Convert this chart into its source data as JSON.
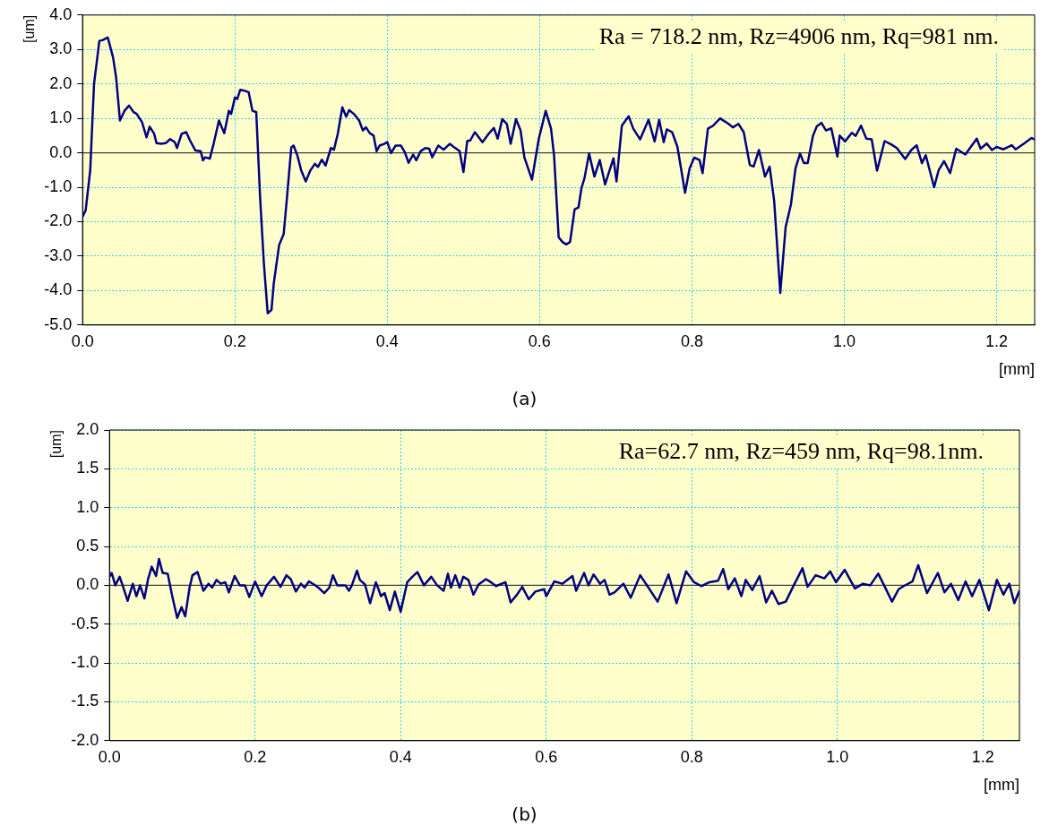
{
  "chart_data": [
    {
      "type": "line",
      "xlabel": "[mm]",
      "ylabel": "[um]",
      "color": "#000080",
      "marker": "none",
      "line_style": "solid",
      "grid": true,
      "legend": false,
      "annotations": [
        "Ra = 718.2 nm, Rz=4906 nm, Rq=981 nm.",
        "(a)"
      ],
      "ref_lines": [
        {
          "axis": "y",
          "value": 0,
          "color": "#404040"
        }
      ],
      "xlim": [
        0,
        1.25
      ],
      "xticks": [
        {
          "value": 0,
          "label": "0.0"
        },
        {
          "value": 0.2,
          "label": "0.2"
        },
        {
          "value": 0.4,
          "label": "0.4"
        },
        {
          "value": 0.6,
          "label": "0.6"
        },
        {
          "value": 0.8,
          "label": "0.8"
        },
        {
          "value": 1,
          "label": "1.0"
        },
        {
          "value": 1.2,
          "label": "1.2"
        }
      ],
      "ylim": [
        -5,
        4
      ],
      "yticks": [
        {
          "value": -5,
          "label": "-5.0"
        },
        {
          "value": -4,
          "label": "-4.0"
        },
        {
          "value": -3,
          "label": "-3.0"
        },
        {
          "value": -2,
          "label": "-2.0"
        },
        {
          "value": -1,
          "label": "-1.0"
        },
        {
          "value": 0,
          "label": "0.0"
        },
        {
          "value": 1,
          "label": "1.0"
        },
        {
          "value": 2,
          "label": "2.0"
        },
        {
          "value": 3,
          "label": "3.0"
        },
        {
          "value": 4,
          "label": "4.0"
        }
      ],
      "x": [
        0,
        0.004,
        0.01,
        0.015,
        0.022,
        0.026,
        0.033,
        0.04,
        0.044,
        0.049,
        0.055,
        0.061,
        0.067,
        0.071,
        0.078,
        0.084,
        0.088,
        0.094,
        0.097,
        0.103,
        0.109,
        0.115,
        0.121,
        0.124,
        0.13,
        0.136,
        0.141,
        0.148,
        0.155,
        0.158,
        0.161,
        0.167,
        0.172,
        0.179,
        0.186,
        0.192,
        0.195,
        0.2,
        0.203,
        0.207,
        0.213,
        0.218,
        0.223,
        0.228,
        0.233,
        0.238,
        0.243,
        0.248,
        0.251,
        0.258,
        0.264,
        0.268,
        0.274,
        0.277,
        0.282,
        0.287,
        0.293,
        0.299,
        0.305,
        0.309,
        0.314,
        0.319,
        0.326,
        0.33,
        0.335,
        0.341,
        0.346,
        0.35,
        0.357,
        0.363,
        0.368,
        0.372,
        0.377,
        0.382,
        0.386,
        0.39,
        0.396,
        0.4,
        0.405,
        0.411,
        0.418,
        0.423,
        0.428,
        0.434,
        0.438,
        0.444,
        0.45,
        0.455,
        0.459,
        0.467,
        0.474,
        0.482,
        0.488,
        0.495,
        0.5,
        0.505,
        0.509,
        0.515,
        0.525,
        0.533,
        0.54,
        0.545,
        0.551,
        0.557,
        0.562,
        0.569,
        0.575,
        0.58,
        0.59,
        0.599,
        0.608,
        0.615,
        0.619,
        0.625,
        0.63,
        0.635,
        0.64,
        0.646,
        0.651,
        0.655,
        0.659,
        0.665,
        0.672,
        0.679,
        0.686,
        0.697,
        0.701,
        0.708,
        0.717,
        0.723,
        0.732,
        0.743,
        0.751,
        0.757,
        0.763,
        0.767,
        0.774,
        0.781,
        0.791,
        0.797,
        0.803,
        0.81,
        0.814,
        0.821,
        0.828,
        0.837,
        0.848,
        0.854,
        0.861,
        0.868,
        0.876,
        0.881,
        0.888,
        0.896,
        0.902,
        0.908,
        0.916,
        0.923,
        0.93,
        0.936,
        0.942,
        0.947,
        0.952,
        0.959,
        0.964,
        0.97,
        0.976,
        0.983,
        0.991,
        0.994,
        1.001,
        1.01,
        1.015,
        1.022,
        1.029,
        1.036,
        1.043,
        1.053,
        1.062,
        1.069,
        1.08,
        1.088,
        1.095,
        1.102,
        1.107,
        1.118,
        1.124,
        1.131,
        1.139,
        1.147,
        1.159,
        1.174,
        1.179,
        1.187,
        1.194,
        1.2,
        1.209,
        1.22,
        1.225,
        1.236,
        1.246,
        1.25
      ],
      "values": [
        -1.86,
        -1.67,
        -0.51,
        2.0,
        3.25,
        3.27,
        3.35,
        2.77,
        2.19,
        0.94,
        1.22,
        1.37,
        1.18,
        1.13,
        0.89,
        0.45,
        0.76,
        0.55,
        0.28,
        0.26,
        0.28,
        0.4,
        0.31,
        0.14,
        0.55,
        0.6,
        0.36,
        0.07,
        0.05,
        -0.22,
        -0.13,
        -0.17,
        0.26,
        0.94,
        0.57,
        1.22,
        1.13,
        1.61,
        1.56,
        1.83,
        1.8,
        1.76,
        1.22,
        1.18,
        -1.28,
        -3.21,
        -4.66,
        -4.56,
        -3.79,
        -2.68,
        -2.36,
        -1.38,
        0.16,
        0.21,
        -0.08,
        -0.51,
        -0.83,
        -0.51,
        -0.32,
        -0.41,
        -0.2,
        -0.37,
        0.14,
        0.09,
        0.55,
        1.32,
        1.05,
        1.24,
        1.11,
        0.94,
        0.65,
        0.74,
        0.57,
        0.5,
        0.05,
        0.21,
        0.26,
        0.31,
        -0.01,
        0.21,
        0.21,
        0.02,
        -0.29,
        -0.05,
        -0.22,
        0.05,
        0.14,
        0.12,
        -0.13,
        0.21,
        0.09,
        0.26,
        0.16,
        0.05,
        -0.56,
        0.34,
        0.36,
        0.6,
        0.31,
        0.55,
        0.72,
        0.41,
        0.98,
        0.84,
        0.26,
        0.98,
        0.65,
        -0.13,
        -0.78,
        0.41,
        1.22,
        0.7,
        -0.07,
        -2.45,
        -2.59,
        -2.66,
        -2.59,
        -1.64,
        -1.59,
        -1.02,
        -0.73,
        -0.02,
        -0.69,
        -0.21,
        -0.92,
        -0.16,
        -0.83,
        0.79,
        1.06,
        0.7,
        0.39,
        0.96,
        0.33,
        0.96,
        0.31,
        0.68,
        0.6,
        0.17,
        -1.16,
        -0.45,
        -0.14,
        -0.21,
        -0.59,
        0.7,
        0.79,
        1.0,
        0.84,
        0.74,
        0.84,
        0.6,
        -0.35,
        -0.4,
        0.08,
        -0.69,
        -0.4,
        -1.4,
        -4.07,
        -2.16,
        -1.5,
        -0.45,
        -0.02,
        -0.3,
        -0.3,
        0.5,
        0.77,
        0.87,
        0.65,
        0.71,
        -0.11,
        0.5,
        0.33,
        0.58,
        0.49,
        0.79,
        0.41,
        0.39,
        -0.52,
        0.34,
        0.24,
        0.14,
        -0.18,
        0.08,
        0.22,
        -0.3,
        -0.07,
        -1.0,
        -0.5,
        -0.24,
        -0.59,
        0.12,
        -0.05,
        0.41,
        0.12,
        0.27,
        0.08,
        0.17,
        0.1,
        0.22,
        0.1,
        0.27,
        0.43,
        0.39
      ]
    },
    {
      "type": "line",
      "xlabel": "[mm]",
      "ylabel": "[um]",
      "color": "#000080",
      "marker": "none",
      "line_style": "solid",
      "grid": true,
      "legend": false,
      "annotations": [
        "Ra=62.7 nm, Rz=459 nm, Rq=98.1nm.",
        "(b)"
      ],
      "ref_lines": [
        {
          "axis": "y",
          "value": 0,
          "color": "#404040"
        }
      ],
      "xlim": [
        0,
        1.25
      ],
      "xticks": [
        {
          "value": 0,
          "label": "0.0"
        },
        {
          "value": 0.2,
          "label": "0.2"
        },
        {
          "value": 0.4,
          "label": "0.4"
        },
        {
          "value": 0.6,
          "label": "0.6"
        },
        {
          "value": 0.8,
          "label": "0.8"
        },
        {
          "value": 1,
          "label": "1.0"
        },
        {
          "value": 1.2,
          "label": "1.2"
        }
      ],
      "ylim": [
        -2,
        2
      ],
      "yticks": [
        {
          "value": -2,
          "label": "-2.0"
        },
        {
          "value": -1.5,
          "label": "-1.5"
        },
        {
          "value": -1,
          "label": "-1.0"
        },
        {
          "value": -0.5,
          "label": "-0.5"
        },
        {
          "value": 0,
          "label": "0.0"
        },
        {
          "value": 0.5,
          "label": "0.5"
        },
        {
          "value": 1,
          "label": "1.0"
        },
        {
          "value": 1.5,
          "label": "1.5"
        },
        {
          "value": 2,
          "label": "2.0"
        }
      ],
      "x": [
        0,
        0.003,
        0.008,
        0.014,
        0.018,
        0.025,
        0.032,
        0.037,
        0.042,
        0.048,
        0.053,
        0.058,
        0.064,
        0.068,
        0.073,
        0.08,
        0.086,
        0.093,
        0.099,
        0.104,
        0.11,
        0.114,
        0.121,
        0.129,
        0.136,
        0.141,
        0.147,
        0.153,
        0.159,
        0.164,
        0.172,
        0.179,
        0.186,
        0.192,
        0.2,
        0.209,
        0.216,
        0.226,
        0.235,
        0.243,
        0.249,
        0.256,
        0.263,
        0.268,
        0.274,
        0.281,
        0.287,
        0.295,
        0.302,
        0.307,
        0.313,
        0.324,
        0.329,
        0.333,
        0.34,
        0.344,
        0.351,
        0.358,
        0.366,
        0.373,
        0.378,
        0.385,
        0.392,
        0.4,
        0.409,
        0.416,
        0.423,
        0.432,
        0.442,
        0.45,
        0.459,
        0.465,
        0.469,
        0.475,
        0.481,
        0.486,
        0.493,
        0.5,
        0.507,
        0.517,
        0.524,
        0.531,
        0.544,
        0.551,
        0.559,
        0.567,
        0.576,
        0.585,
        0.597,
        0.6,
        0.611,
        0.622,
        0.636,
        0.641,
        0.652,
        0.658,
        0.665,
        0.674,
        0.68,
        0.687,
        0.694,
        0.706,
        0.716,
        0.729,
        0.739,
        0.753,
        0.768,
        0.779,
        0.792,
        0.803,
        0.813,
        0.824,
        0.836,
        0.843,
        0.85,
        0.859,
        0.868,
        0.874,
        0.883,
        0.893,
        0.902,
        0.91,
        0.919,
        0.929,
        0.94,
        0.952,
        0.959,
        0.97,
        0.982,
        0.99,
        0.998,
        1.01,
        1.024,
        1.035,
        1.045,
        1.056,
        1.063,
        1.075,
        1.084,
        1.091,
        1.103,
        1.111,
        1.123,
        1.138,
        1.147,
        1.156,
        1.166,
        1.176,
        1.185,
        1.195,
        1.208,
        1.219,
        1.228,
        1.236,
        1.243,
        1.25
      ],
      "values": [
        0.11,
        0.16,
        0.0,
        0.11,
        0.0,
        -0.2,
        0.02,
        -0.14,
        0.0,
        -0.17,
        0.08,
        0.24,
        0.12,
        0.34,
        0.16,
        0.15,
        -0.13,
        -0.42,
        -0.28,
        -0.4,
        -0.03,
        0.13,
        0.17,
        -0.07,
        0.02,
        -0.03,
        0.07,
        0.02,
        0.04,
        -0.09,
        0.12,
        0.0,
        0.0,
        -0.15,
        0.05,
        -0.14,
        0.0,
        0.11,
        -0.02,
        0.13,
        0.08,
        -0.08,
        0.02,
        -0.03,
        0.05,
        0.01,
        -0.03,
        -0.1,
        -0.03,
        0.13,
        0.0,
        0.0,
        -0.07,
        0.0,
        0.19,
        0.07,
        0.01,
        -0.23,
        0.04,
        -0.14,
        -0.1,
        -0.32,
        -0.08,
        -0.34,
        0.04,
        0.11,
        0.17,
        0.0,
        0.11,
        0.0,
        -0.07,
        0.15,
        -0.03,
        0.13,
        -0.03,
        0.11,
        0.07,
        -0.12,
        0.01,
        0.08,
        0.04,
        -0.01,
        0.04,
        -0.22,
        -0.13,
        -0.02,
        -0.18,
        -0.08,
        -0.05,
        -0.14,
        0.05,
        0.02,
        0.12,
        -0.07,
        0.16,
        0.0,
        0.14,
        0.02,
        0.07,
        -0.12,
        -0.09,
        0.02,
        -0.16,
        0.13,
        -0.01,
        -0.21,
        0.14,
        -0.23,
        0.18,
        0.04,
        -0.01,
        0.04,
        0.06,
        0.21,
        -0.05,
        0.09,
        -0.14,
        0.07,
        -0.06,
        0.12,
        -0.22,
        -0.07,
        -0.24,
        -0.21,
        0.0,
        0.22,
        -0.02,
        0.13,
        0.09,
        0.18,
        0.04,
        0.2,
        -0.04,
        0.02,
        0.0,
        0.15,
        0.02,
        -0.21,
        -0.05,
        -0.01,
        0.05,
        0.26,
        -0.1,
        0.16,
        -0.09,
        0.02,
        -0.19,
        0.05,
        -0.14,
        0.07,
        -0.32,
        0.07,
        -0.12,
        0.02,
        -0.23,
        -0.07
      ]
    }
  ]
}
